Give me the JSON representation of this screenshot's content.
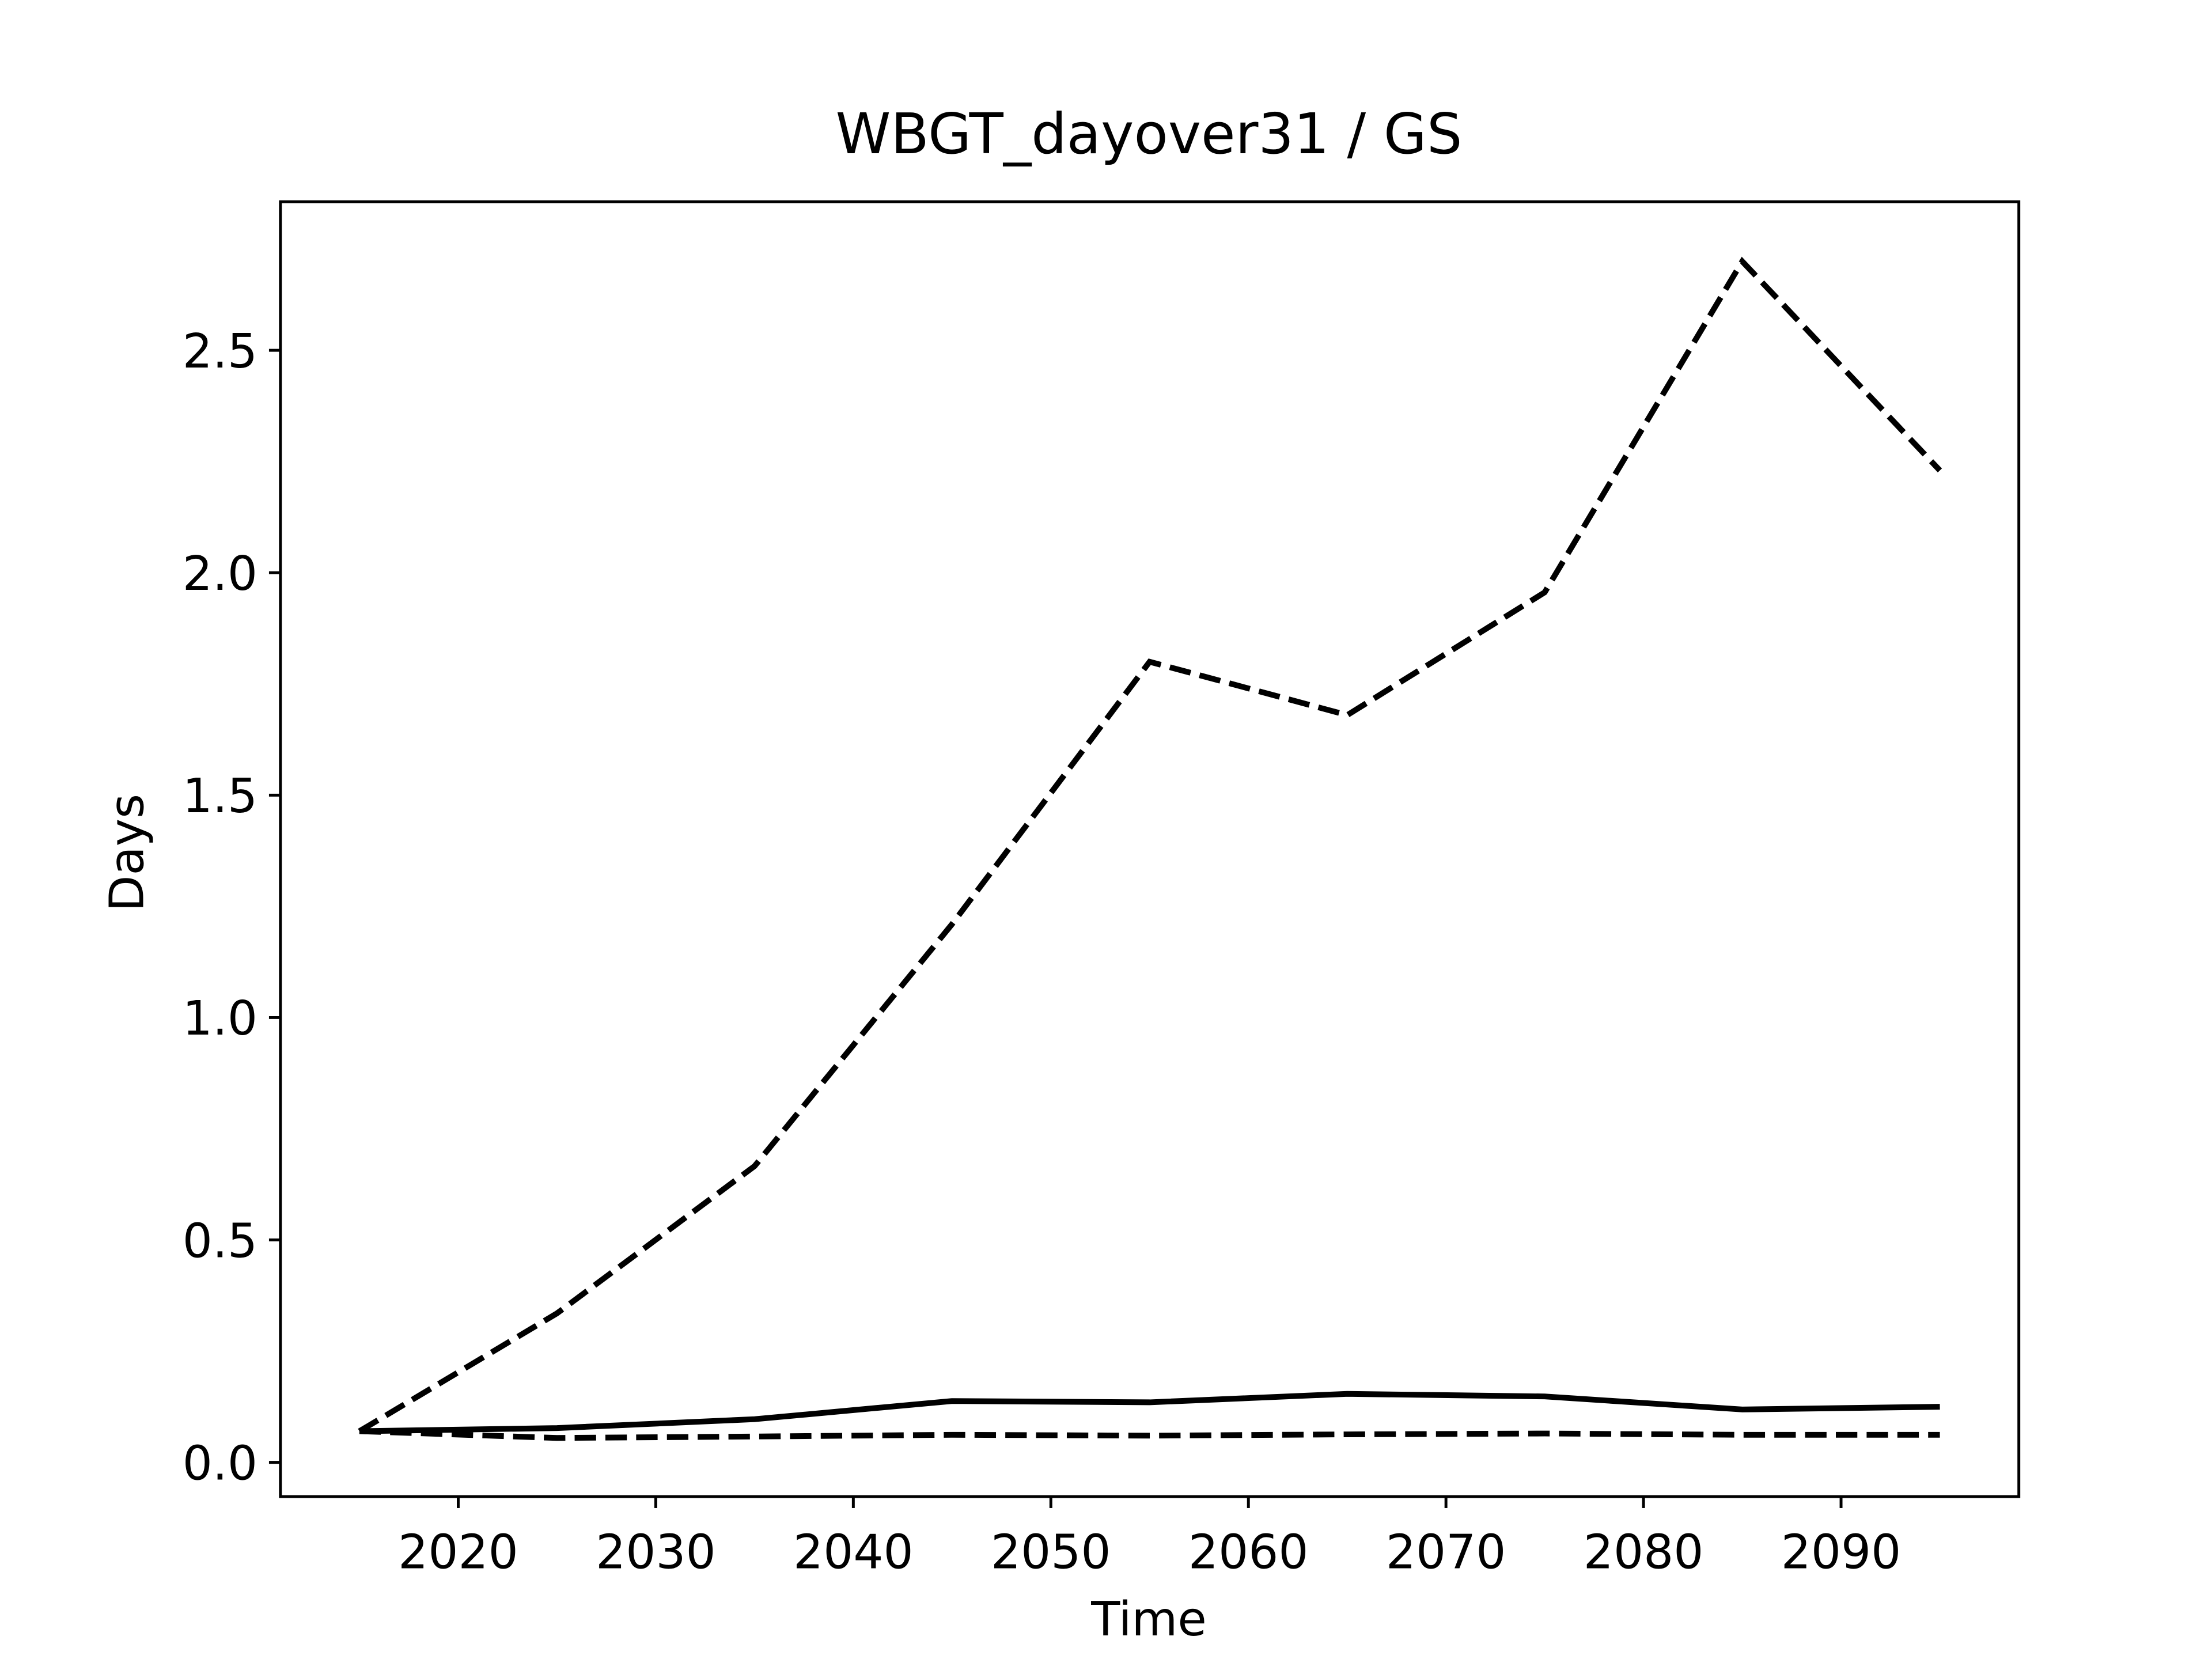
{
  "chart_data": {
    "type": "line",
    "title": "WBGT_dayover31 / GS",
    "xlabel": "Time",
    "ylabel": "Days",
    "x": [
      2015,
      2025,
      2035,
      2045,
      2055,
      2065,
      2075,
      2085,
      2095
    ],
    "series": [
      {
        "color": "#000000",
        "style": "dashed",
        "values": [
          0.07,
          0.335,
          0.666,
          1.21,
          1.8,
          1.68,
          1.956,
          2.7,
          2.23
        ]
      },
      {
        "color": "#000000",
        "style": "solid",
        "values": [
          0.07,
          0.077,
          0.097,
          0.138,
          0.135,
          0.154,
          0.148,
          0.119,
          0.125
        ]
      },
      {
        "color": "#000000",
        "style": "dashed",
        "values": [
          0.07,
          0.055,
          0.058,
          0.062,
          0.06,
          0.063,
          0.065,
          0.062,
          0.062
        ]
      }
    ],
    "xlim": [
      2011,
      2099
    ],
    "xticks": [
      2020,
      2030,
      2040,
      2050,
      2060,
      2070,
      2080,
      2090
    ],
    "ylim": [
      -0.077,
      2.834
    ],
    "yticks": [
      {
        "value": 0,
        "label": "0.0"
      },
      0.5,
      {
        "value": 1,
        "label": "1.0"
      },
      1.5,
      {
        "value": 2,
        "label": "2.0"
      },
      2.5
    ],
    "grid": false
  }
}
